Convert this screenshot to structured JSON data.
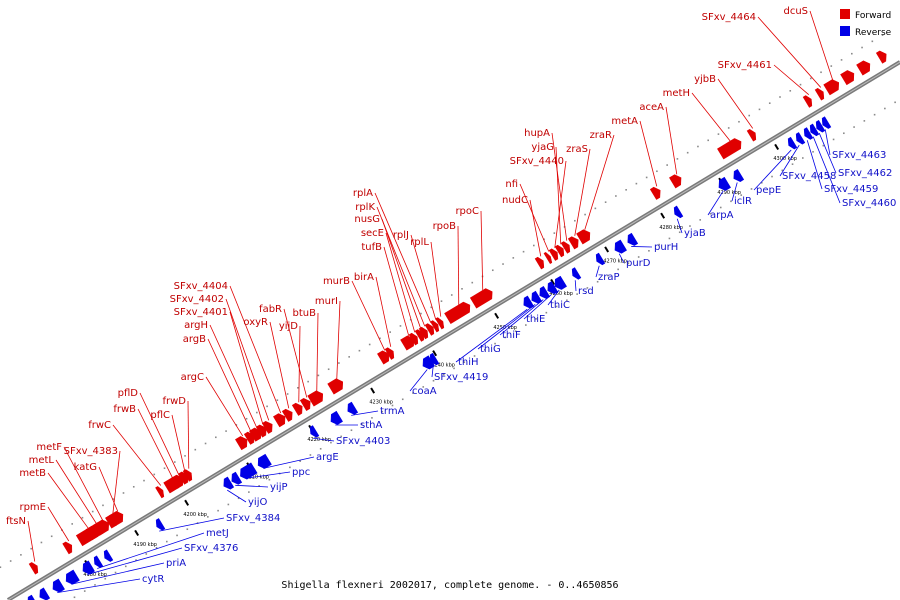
{
  "footer": "Shigella flexneri 2002017, complete genome. - 0..4650856",
  "legend": {
    "forward": {
      "label": "Forward",
      "color": "#e00000"
    },
    "reverse": {
      "label": "Reverse",
      "color": "#0000e6"
    }
  },
  "kbp_ticks": [
    "4180 kbp",
    "4190 kbp",
    "4200 kbp",
    "4210 kbp",
    "4220 kbp",
    "4230 kbp",
    "4240 kbp",
    "4250 kbp",
    "4260 kbp",
    "4270 kbp",
    "4280 kbp",
    "4290 kbp",
    "4300 kbp"
  ],
  "forward_genes": [
    "ftsN",
    "rpmE",
    "metB",
    "metL",
    "metF",
    "SFxv_4383",
    "katG",
    "frwC",
    "frwB",
    "pflD",
    "pflC",
    "frwD",
    "argC",
    "argB",
    "argH",
    "SFxv_4401",
    "SFxv_4402",
    "SFxv_4404",
    "oxyR",
    "yijD",
    "fabR",
    "btuB",
    "murI",
    "murB",
    "birA",
    "tufB",
    "secE",
    "nusG",
    "rplK",
    "rplA",
    "rplJ",
    "rplL",
    "rpoB",
    "rpoC",
    "nudC",
    "nfi",
    "SFxv_4440",
    "yjaG",
    "hupA",
    "zraS",
    "zraR",
    "metA",
    "aceA",
    "metH",
    "yjbB",
    "SFxv_4461",
    "SFxv_4464",
    "dcuS"
  ],
  "reverse_genes": [
    "cytR",
    "priA",
    "SFxv_4376",
    "metJ",
    "SFxv_4384",
    "yijO",
    "yijP",
    "ppc",
    "argE",
    "SFxv_4403",
    "sthA",
    "trmA",
    "coaA",
    "SFxv_4419",
    "thiH",
    "thiG",
    "thiF",
    "thiE",
    "thiC",
    "rsd",
    "zraP",
    "purD",
    "purH",
    "yjaB",
    "arpA",
    "iclR",
    "pepE",
    "SFxv_4458",
    "SFxv_4459",
    "SFxv_4460",
    "SFxv_4462",
    "SFxv_4463"
  ]
}
